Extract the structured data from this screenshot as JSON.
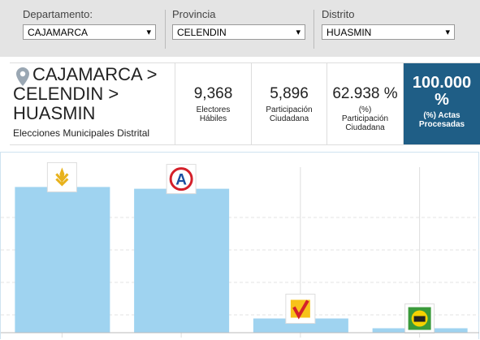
{
  "filters": [
    {
      "label": "Departamento:",
      "value": "CAJAMARCA"
    },
    {
      "label": "Provincia",
      "value": "CELENDIN"
    },
    {
      "label": "Distrito",
      "value": "HUASMIN"
    }
  ],
  "location": {
    "path": [
      "CAJAMARCA >",
      "CELENDIN >",
      "HUASMIN"
    ],
    "subtitle": "Elecciones Municipales Distrital"
  },
  "stats": [
    {
      "value": "9,368",
      "label": "Electores Hábiles"
    },
    {
      "value": "5,896",
      "label": "Participación Ciudadana"
    },
    {
      "value": "62.938 %",
      "label": "(%) Participación Ciudadana"
    },
    {
      "value": "100.000 %",
      "label": "(%) Actas Procesadas"
    }
  ],
  "chart_data": {
    "type": "bar",
    "values": [
      82,
      81,
      8,
      2.5
    ],
    "logo_labels": [
      null,
      "A",
      null,
      null
    ],
    "color": "#9fd3f0",
    "ylim": [
      0,
      100
    ]
  }
}
